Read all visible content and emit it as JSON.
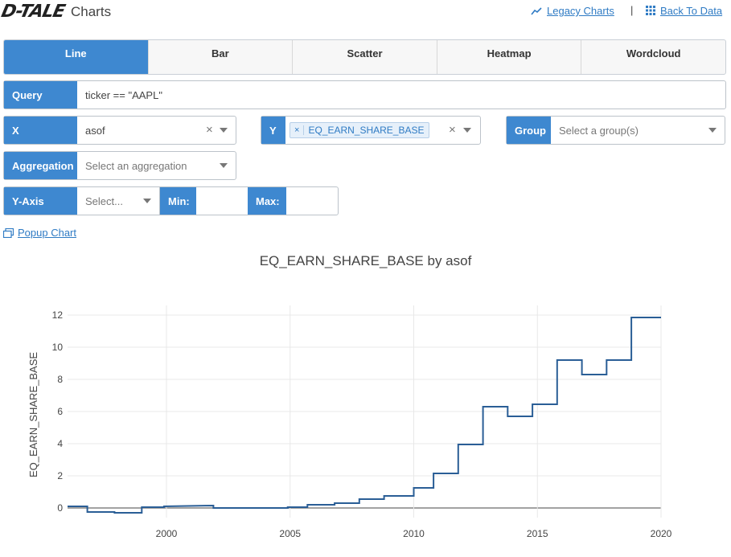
{
  "header": {
    "logo": "D-TALE",
    "title": "Charts",
    "legacy_link": "Legacy Charts",
    "separator": "|",
    "back_link": "Back To Data"
  },
  "tabs": [
    {
      "label": "Line",
      "active": true
    },
    {
      "label": "Bar",
      "active": false
    },
    {
      "label": "Scatter",
      "active": false
    },
    {
      "label": "Heatmap",
      "active": false
    },
    {
      "label": "Wordcloud",
      "active": false
    }
  ],
  "query": {
    "label": "Query",
    "value": "ticker == \"AAPL\""
  },
  "x": {
    "label": "X",
    "value": "asof"
  },
  "y": {
    "label": "Y",
    "chip": "EQ_EARN_SHARE_BASE"
  },
  "group": {
    "label": "Group",
    "placeholder": "Select a group(s)"
  },
  "aggregation": {
    "label": "Aggregation",
    "placeholder": "Select an aggregation"
  },
  "yaxis": {
    "label": "Y-Axis",
    "placeholder": "Select...",
    "min_label": "Min:",
    "max_label": "Max:",
    "min_value": "",
    "max_value": ""
  },
  "popup": {
    "label": "Popup Chart"
  },
  "colors": {
    "accent": "#3e88d0",
    "line": "#2a5e96",
    "link": "#2f7bc4"
  },
  "chart_data": {
    "type": "line",
    "title": "EQ_EARN_SHARE_BASE by asof",
    "xlabel": "",
    "ylabel": "EQ_EARN_SHARE_BASE",
    "xlim": [
      1996.0,
      2020.0
    ],
    "ylim": [
      -0.6,
      12.6
    ],
    "x_ticks": [
      2000,
      2005,
      2010,
      2015,
      2020
    ],
    "y_ticks": [
      0,
      2,
      4,
      6,
      8,
      10,
      12
    ],
    "grid": true,
    "series": [
      {
        "x": [
          1996.0,
          1996.8,
          1996.8,
          1997.9,
          1997.9,
          1999.0,
          1999.0,
          1999.9,
          1999.9,
          2001.9,
          2001.9,
          2004.9,
          2004.9,
          2005.7,
          2005.7,
          2006.8,
          2006.8,
          2007.8,
          2007.8,
          2008.8,
          2008.8,
          2010.0,
          2010.0,
          2010.8,
          2010.8,
          2011.8,
          2011.8,
          2012.8,
          2012.8,
          2013.8,
          2013.8,
          2014.8,
          2014.8,
          2015.8,
          2015.8,
          2016.8,
          2016.8,
          2017.8,
          2017.8,
          2018.8,
          2018.8,
          2020.0
        ],
        "y": [
          0.1,
          0.1,
          -0.25,
          -0.25,
          -0.3,
          -0.3,
          0.05,
          0.05,
          0.1,
          0.15,
          0.0,
          0.0,
          0.05,
          0.05,
          0.2,
          0.2,
          0.3,
          0.3,
          0.55,
          0.55,
          0.75,
          0.75,
          1.25,
          1.25,
          2.15,
          2.15,
          3.95,
          3.95,
          6.3,
          6.3,
          5.7,
          5.7,
          6.45,
          6.45,
          9.2,
          9.2,
          8.3,
          8.3,
          9.2,
          9.2,
          11.85,
          11.85
        ]
      }
    ]
  }
}
